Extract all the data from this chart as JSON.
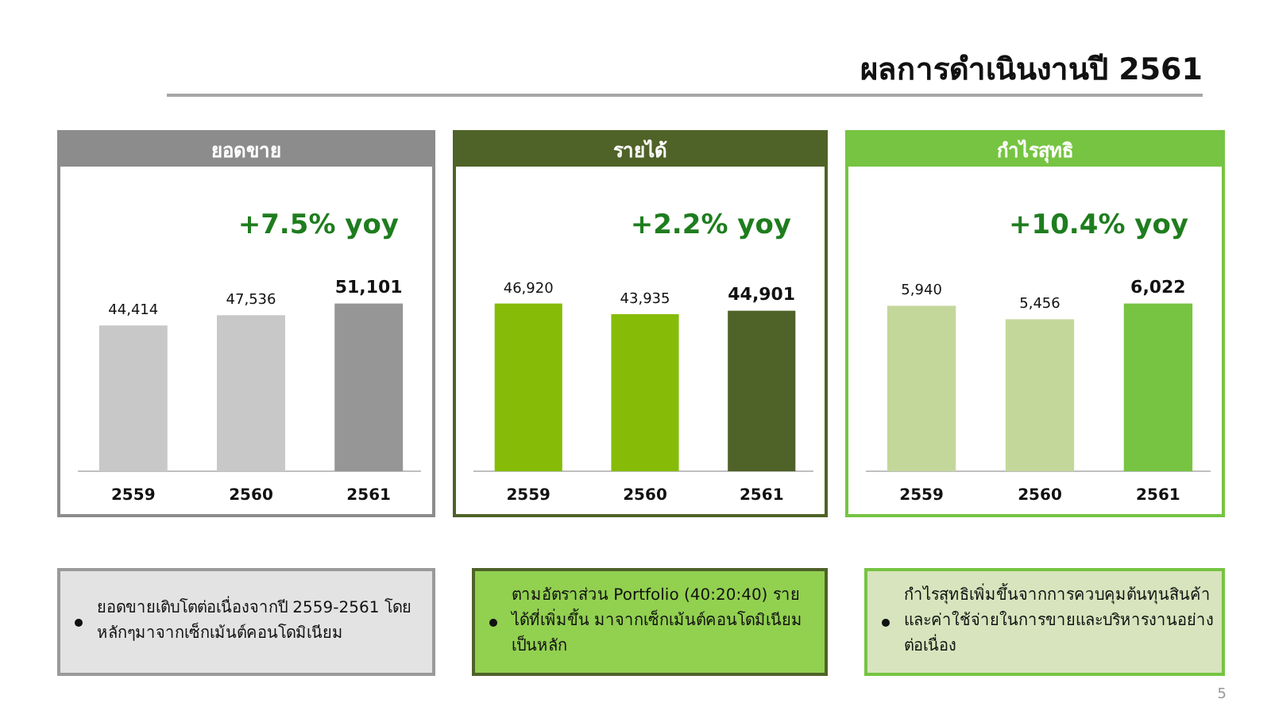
{
  "chart_data": [
    {
      "type": "other",
      "title": "ผลการดำเนินงานปี 2561",
      "annotations": [
        "5"
      ]
    },
    {
      "type": "bar",
      "title": "ยอดขาย",
      "categories": [
        "2559",
        "2560",
        "2561"
      ],
      "values": [
        44414,
        47536,
        51101
      ],
      "colors": [
        "#c8c8c8",
        "#c8c8c8",
        "#969696"
      ],
      "value_labels": [
        "44,414",
        "47,536",
        "51,101"
      ],
      "annotations": [
        "+7.5% yoy",
        "ยอดขายเติบโตต่อเนื่องจากปี 2559-2561 โดยหลักๆมาจากเซ็กเม้นต์คอนโดมิเนียม"
      ]
    },
    {
      "type": "bar",
      "title": "รายได้",
      "categories": [
        "2559",
        "2560",
        "2561"
      ],
      "values": [
        46920,
        43935,
        44901
      ],
      "colors": [
        "#86bc08",
        "#86bc08",
        "#4f6228"
      ],
      "value_labels": [
        "46,920",
        "43,935",
        "44,901"
      ],
      "annotations": [
        "+2.2% yoy",
        "ตามอัตราส่วน Portfolio (40:20:40) รายได้ที่เพิ่มขึ้น มาจากเซ็กเม้นต์คอนโดมิเนียมเป็นหลัก"
      ]
    },
    {
      "type": "bar",
      "title": "กำไรสุทธิ",
      "categories": [
        "2559",
        "2560",
        "2561"
      ],
      "values": [
        5940,
        5456,
        6022
      ],
      "colors": [
        "#c4d79b",
        "#c4d79b",
        "#76c442"
      ],
      "value_labels": [
        "5,940",
        "5,456",
        "6,022"
      ],
      "annotations": [
        "+10.4% yoy",
        "กำไรสุทธิเพิ่มขึ้นจากการควบคุมต้นทุนสินค้าและค่าใช้จ่ายในการขายและบริหารงานอย่างต่อเนื่อง"
      ]
    }
  ]
}
